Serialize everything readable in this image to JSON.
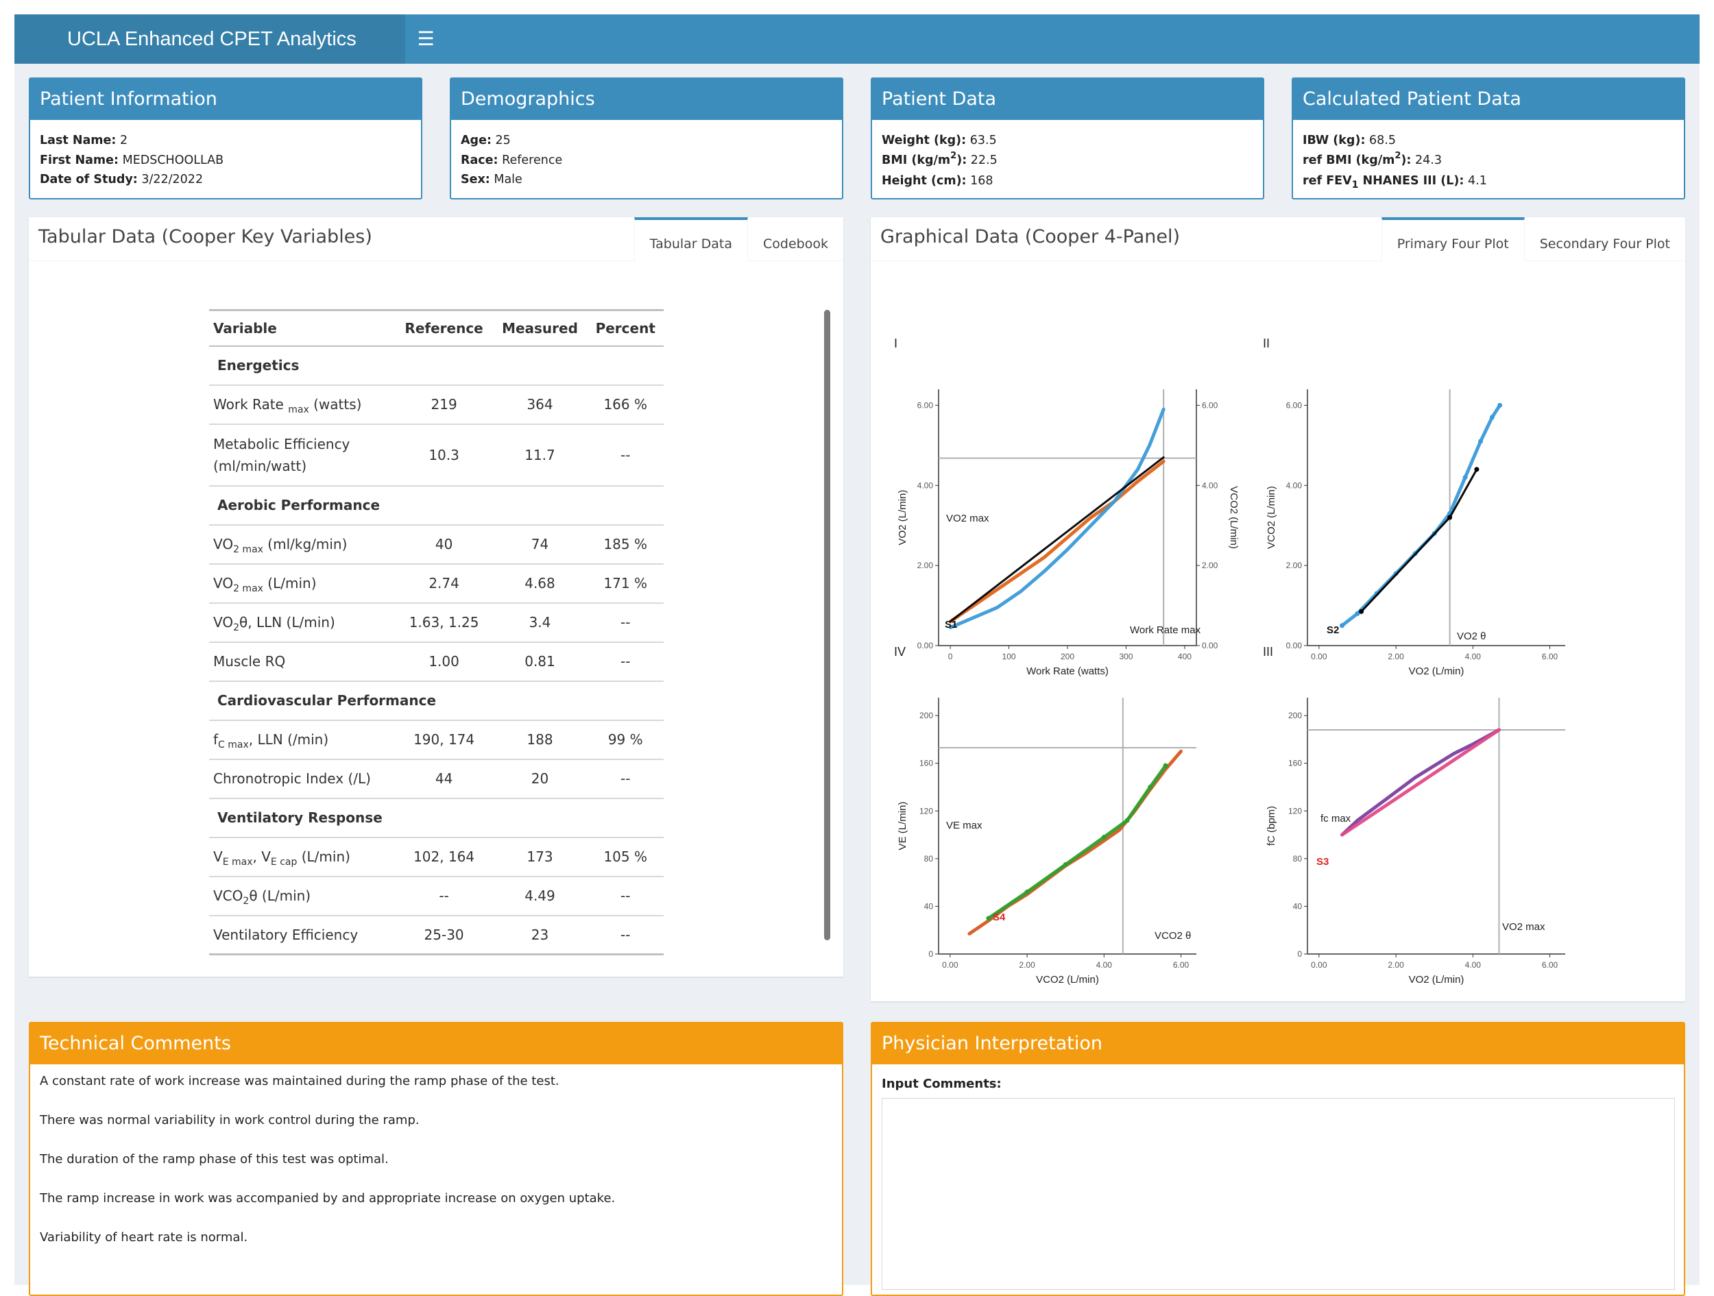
{
  "app": {
    "title": "UCLA Enhanced CPET Analytics",
    "menu_icon": "hamburger-icon"
  },
  "colors": {
    "header": "#3c8dbc",
    "logo_bg": "#367fa9",
    "warning": "#f39c12",
    "background": "#ecf0f5"
  },
  "patient_info": {
    "title": "Patient Information",
    "rows": [
      {
        "label": "Last Name:",
        "value": "2"
      },
      {
        "label": "First Name:",
        "value": "MEDSCHOOLLAB"
      },
      {
        "label": "Date of Study:",
        "value": "3/22/2022"
      }
    ]
  },
  "demographics": {
    "title": "Demographics",
    "rows": [
      {
        "label": "Age:",
        "value": "25"
      },
      {
        "label": "Race:",
        "value": "Reference"
      },
      {
        "label": "Sex:",
        "value": "Male"
      }
    ]
  },
  "patient_data": {
    "title": "Patient Data",
    "weight_label": "Weight (kg):",
    "weight": "63.5",
    "bmi_label_a": "BMI (kg/m",
    "bmi_label_sup": "2",
    "bmi_label_b": "):",
    "bmi": "22.5",
    "height_label": "Height (cm):",
    "height": "168"
  },
  "calculated": {
    "title": "Calculated Patient Data",
    "ibw_label": "IBW (kg):",
    "ibw": "68.5",
    "refbmi_label_a": "ref BMI (kg/m",
    "refbmi_label_sup": "2",
    "refbmi_label_b": "):",
    "refbmi": "24.3",
    "fev_label_a": "ref FEV",
    "fev_label_sub": "1",
    "fev_label_b": " NHANES III (L):",
    "fev": "4.1"
  },
  "tabular": {
    "title": "Tabular Data (Cooper Key Variables)",
    "tabs": [
      "Tabular Data",
      "Codebook"
    ],
    "headers": [
      "Variable",
      "Reference",
      "Measured",
      "Percent"
    ],
    "sections": {
      "energetics": "Energetics",
      "aerobic": "Aerobic Performance",
      "cardio": "Cardiovascular Performance",
      "vent": "Ventilatory Response"
    },
    "rows": {
      "work_rate": {
        "a": "Work Rate",
        "sub": "max",
        "b": " (watts)",
        "ref": "219",
        "meas": "364",
        "pct": "166 %"
      },
      "met_eff": {
        "a": "Metabolic Efficiency",
        "b": "(ml/min/watt)",
        "ref": "10.3",
        "meas": "11.7",
        "pct": "--"
      },
      "vo2max_kg": {
        "a": "VO",
        "sub": "2 max",
        "b": " (ml/kg/min)",
        "ref": "40",
        "meas": "74",
        "pct": "185 %"
      },
      "vo2max_l": {
        "a": "VO",
        "sub": "2 max",
        "b": " (L/min)",
        "ref": "2.74",
        "meas": "4.68",
        "pct": "171 %"
      },
      "vo2theta": {
        "a": "VO",
        "sub": "2",
        "b": "θ, LLN (L/min)",
        "ref": "1.63, 1.25",
        "meas": "3.4",
        "pct": "--"
      },
      "muscle_rq": {
        "a": "Muscle RQ",
        "ref": "1.00",
        "meas": "0.81",
        "pct": "--"
      },
      "fc_max": {
        "a": "f",
        "sub": "C max",
        "b": ", LLN (/min)",
        "ref": "190, 174",
        "meas": "188",
        "pct": "99 %"
      },
      "chrono": {
        "a": "Chronotropic Index (/L)",
        "ref": "44",
        "meas": "20",
        "pct": "--"
      },
      "ve_max": {
        "a": "V",
        "sub": "E max",
        "b": ", V",
        "sub2": "E cap",
        "c": " (L/min)",
        "ref": "102, 164",
        "meas": "173",
        "pct": "105 %"
      },
      "vco2theta": {
        "a": "VCO",
        "sub": "2",
        "b": "θ (L/min)",
        "ref": "--",
        "meas": "4.49",
        "pct": "--"
      },
      "vent_eff": {
        "a": "Ventilatory Efficiency",
        "ref": "25-30",
        "meas": "23",
        "pct": "--"
      }
    }
  },
  "graphical": {
    "title": "Graphical Data (Cooper 4-Panel)",
    "tabs": [
      "Primary Four Plot",
      "Secondary Four Plot"
    ]
  },
  "chart_data": [
    {
      "panel": "I",
      "type": "line",
      "xlabel": "Work Rate (watts)",
      "ylabel": "VO2 (L/min)",
      "y2label": "VCO2 (L/min)",
      "xlim": [
        -20,
        420
      ],
      "ylim": [
        0,
        6.4
      ],
      "xticks": [
        "0",
        "100",
        "200",
        "300",
        "400"
      ],
      "yticks": [
        "0.00",
        "2.00",
        "4.00",
        "6.00"
      ],
      "annotations": [
        "VO2 max",
        "Work Rate max",
        "S1"
      ],
      "hline_y": 4.68,
      "vline_x": 364,
      "series": [
        {
          "color": "#e0641a",
          "x": [
            0,
            40,
            80,
            120,
            160,
            200,
            240,
            280,
            320,
            364
          ],
          "y": [
            0.6,
            1.0,
            1.4,
            1.8,
            2.2,
            2.7,
            3.2,
            3.6,
            4.1,
            4.6
          ]
        },
        {
          "color": "#3b9ad8",
          "x": [
            0,
            40,
            80,
            120,
            160,
            200,
            240,
            280,
            300,
            320,
            340,
            364
          ],
          "y": [
            0.45,
            0.7,
            0.95,
            1.35,
            1.85,
            2.4,
            3.0,
            3.6,
            4.0,
            4.4,
            5.0,
            5.9
          ]
        },
        {
          "color": "#000000",
          "x": [
            0,
            364
          ],
          "y": [
            0.6,
            4.7
          ]
        }
      ]
    },
    {
      "panel": "II",
      "type": "scatter",
      "xlabel": "VO2 (L/min)",
      "ylabel": "VCO2 (L/min)",
      "xlim": [
        -0.3,
        6.4
      ],
      "ylim": [
        0,
        6.4
      ],
      "xticks": [
        "0.00",
        "2.00",
        "4.00",
        "6.00"
      ],
      "yticks": [
        "0.00",
        "2.00",
        "4.00",
        "6.00"
      ],
      "annotations": [
        "S2",
        "VO2 θ"
      ],
      "vline_x": 3.4,
      "series": [
        {
          "color": "#3b9ad8",
          "x": [
            0.6,
            1.0,
            1.5,
            2.0,
            2.5,
            3.0,
            3.4,
            3.8,
            4.2,
            4.5,
            4.7
          ],
          "y": [
            0.5,
            0.8,
            1.3,
            1.8,
            2.3,
            2.8,
            3.3,
            4.2,
            5.1,
            5.7,
            6.0
          ]
        },
        {
          "color": "#000000",
          "x": [
            1.1,
            3.4,
            4.1
          ],
          "y": [
            0.85,
            3.2,
            4.4
          ]
        }
      ]
    },
    {
      "panel": "IV",
      "type": "line",
      "xlabel": "VCO2 (L/min)",
      "ylabel": "VE (L/min)",
      "xlim": [
        -0.3,
        6.4
      ],
      "ylim": [
        0,
        215
      ],
      "xticks": [
        "0.00",
        "2.00",
        "4.00",
        "6.00"
      ],
      "yticks": [
        "0",
        "40",
        "80",
        "120",
        "160",
        "200"
      ],
      "annotations": [
        "VE max",
        "S4",
        "VCO2 θ"
      ],
      "hline_y": 173,
      "vline_x": 4.49,
      "series": [
        {
          "color": "#d65a23",
          "x": [
            0.5,
            1.0,
            1.5,
            2.0,
            2.5,
            3.0,
            3.5,
            4.0,
            4.4,
            4.8,
            5.2,
            5.6,
            6.0
          ],
          "y": [
            17,
            28,
            40,
            50,
            62,
            74,
            84,
            95,
            104,
            120,
            138,
            155,
            170
          ]
        },
        {
          "color": "#2ca02c",
          "x": [
            1.0,
            2.0,
            3.0,
            4.0,
            4.6,
            5.2,
            5.6
          ],
          "y": [
            30,
            52,
            75,
            98,
            112,
            140,
            158
          ]
        }
      ]
    },
    {
      "panel": "III",
      "type": "line",
      "xlabel": "VO2 (L/min)",
      "ylabel": "fC (bpm)",
      "xlim": [
        -0.3,
        6.4
      ],
      "ylim": [
        0,
        215
      ],
      "xticks": [
        "0.00",
        "2.00",
        "4.00",
        "6.00"
      ],
      "yticks": [
        "0",
        "40",
        "80",
        "120",
        "160",
        "200"
      ],
      "annotations": [
        "fc max",
        "S3",
        "VO2 max"
      ],
      "hline_y": 188,
      "vline_x": 4.68,
      "series": [
        {
          "color": "#7b3fa0",
          "x": [
            0.6,
            1.0,
            1.5,
            2.0,
            2.5,
            3.0,
            3.5,
            4.0,
            4.68
          ],
          "y": [
            100,
            112,
            124,
            136,
            148,
            158,
            168,
            176,
            188
          ]
        },
        {
          "color": "#e24a8a",
          "x": [
            0.6,
            4.68
          ],
          "y": [
            100,
            188
          ]
        }
      ]
    }
  ],
  "technical": {
    "title": "Technical Comments",
    "lines": [
      "A constant rate of work increase was maintained during the ramp phase of the test.",
      "There was normal variability in work control during the ramp.",
      "The duration of the ramp phase of this test was optimal.",
      "The ramp increase in work was accompanied by and appropriate increase on oxygen uptake.",
      "Variability of heart rate is normal."
    ]
  },
  "physician": {
    "title": "Physician Interpretation",
    "input_label": "Input Comments:",
    "input_value": ""
  }
}
